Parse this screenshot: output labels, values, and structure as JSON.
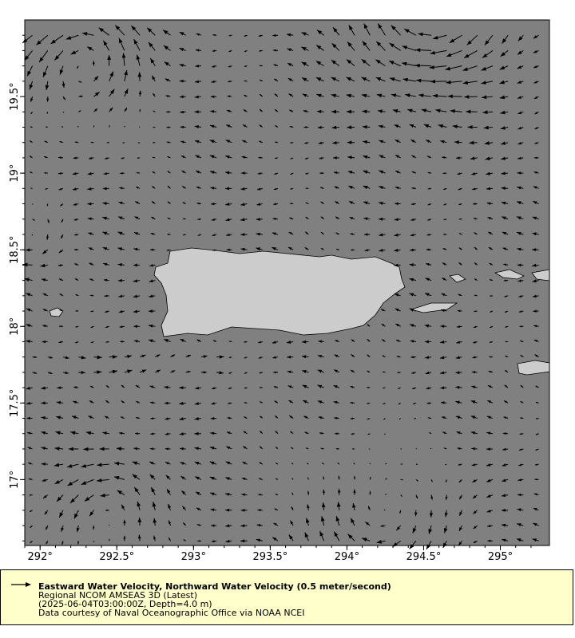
{
  "chart_data": {
    "type": "vector-map",
    "xlim": [
      291.9,
      295.32
    ],
    "ylim": [
      16.57,
      20.0
    ],
    "x_tick_labels": [
      "292°",
      "292.5°",
      "293°",
      "293.5°",
      "294°",
      "294.5°",
      "295°"
    ],
    "x_ticks": [
      292,
      292.5,
      293,
      293.5,
      294,
      294.5,
      295
    ],
    "y_tick_labels": [
      "17°",
      "17.5°",
      "18°",
      "18.5°",
      "19°",
      "19.5°"
    ],
    "y_ticks": [
      17,
      17.5,
      18,
      18.5,
      19,
      19.5
    ],
    "grid_spacing_deg": 0.1,
    "reference_vector_mps": 0.5,
    "colors": {
      "ocean": "#808080",
      "land": "#cccccc",
      "arrow": "#000000",
      "legend_bg": "#ffffcc"
    }
  },
  "legend": {
    "title": "Eastward Water Velocity, Northward Water Velocity (0.5 meter/second)",
    "line2": "Regional NCOM AMSEAS 3D (Latest)",
    "line3": "(2025-06-04T03:00:00Z, Depth=4.0 m)",
    "line4": "Data courtesy of Naval Oceanographic Office via NOAA NCEI",
    "icon": "arrow-right-icon"
  }
}
